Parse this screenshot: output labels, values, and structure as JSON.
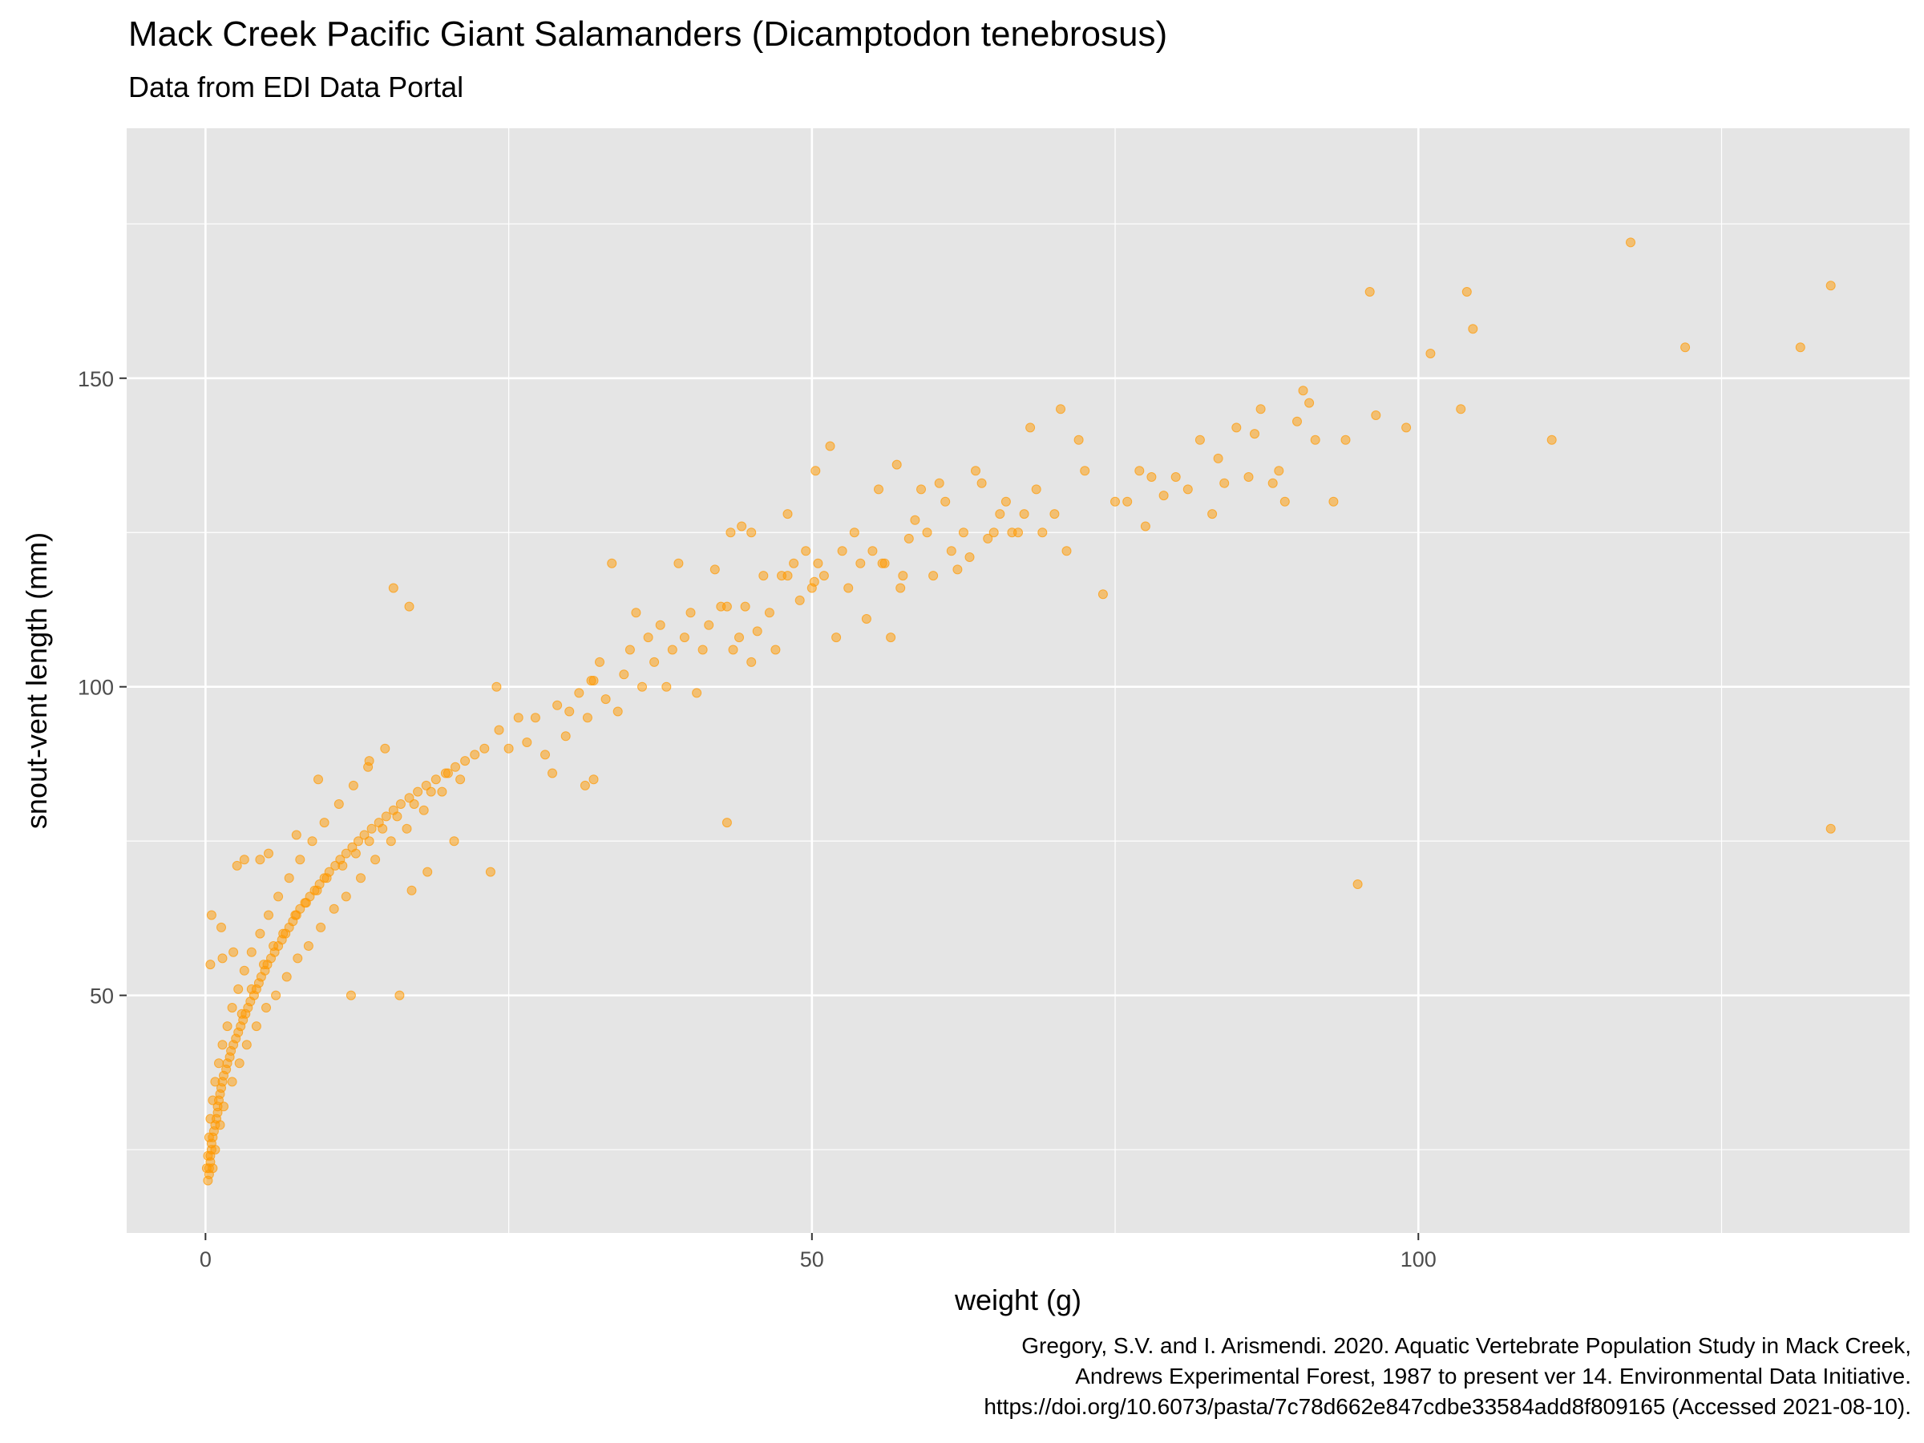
{
  "title": "Mack Creek Pacific Giant Salamanders (Dicamptodon tenebrosus)",
  "subtitle": "Data from EDI Data Portal",
  "caption": [
    "Gregory, S.V. and I. Arismendi. 2020. Aquatic Vertebrate Population Study in Mack Creek,",
    "Andrews Experimental Forest, 1987 to present ver 14. Environmental Data Initiative.",
    "https://doi.org/10.6073/pasta/7c78d662e847cdbe33584add8f809165 (Accessed 2021-08-10)."
  ],
  "colors": {
    "panel": "#e5e5e5",
    "grid": "#ffffff",
    "point": "#ff9900"
  },
  "chart_data": {
    "type": "scatter",
    "title": "Mack Creek Pacific Giant Salamanders (Dicamptodon tenebrosus)",
    "subtitle": "Data from EDI Data Portal",
    "xlabel": "weight (g)",
    "ylabel": "snout-vent length (mm)",
    "xlim": [
      -6.5,
      140.5
    ],
    "ylim": [
      11.5,
      190.5
    ],
    "x_ticks": [
      0,
      50,
      100
    ],
    "x_tick_labels": [
      "0",
      "50",
      "100"
    ],
    "y_ticks": [
      50,
      100,
      150
    ],
    "y_tick_labels": [
      "50",
      "100",
      "150"
    ],
    "grid": true,
    "point_alpha": 0.5,
    "series": [
      {
        "points": [
          [
            0.2,
            20
          ],
          [
            0.3,
            21
          ],
          [
            0.3,
            22
          ],
          [
            0.4,
            23
          ],
          [
            0.4,
            24
          ],
          [
            0.5,
            25
          ],
          [
            0.5,
            26
          ],
          [
            0.6,
            27
          ],
          [
            0.7,
            28
          ],
          [
            0.8,
            29
          ],
          [
            0.9,
            30
          ],
          [
            1.0,
            31
          ],
          [
            1.0,
            32
          ],
          [
            1.1,
            33
          ],
          [
            1.2,
            34
          ],
          [
            1.3,
            35
          ],
          [
            1.4,
            36
          ],
          [
            1.5,
            37
          ],
          [
            1.7,
            38
          ],
          [
            1.8,
            39
          ],
          [
            2.0,
            40
          ],
          [
            2.1,
            41
          ],
          [
            2.3,
            42
          ],
          [
            2.5,
            43
          ],
          [
            2.7,
            44
          ],
          [
            2.9,
            45
          ],
          [
            3.1,
            46
          ],
          [
            3.3,
            47
          ],
          [
            3.5,
            48
          ],
          [
            3.7,
            49
          ],
          [
            4.0,
            50
          ],
          [
            4.2,
            51
          ],
          [
            4.4,
            52
          ],
          [
            4.6,
            53
          ],
          [
            4.9,
            54
          ],
          [
            5.1,
            55
          ],
          [
            5.4,
            56
          ],
          [
            5.7,
            57
          ],
          [
            6.0,
            58
          ],
          [
            6.3,
            59
          ],
          [
            6.6,
            60
          ],
          [
            6.9,
            61
          ],
          [
            7.2,
            62
          ],
          [
            7.5,
            63
          ],
          [
            7.8,
            64
          ],
          [
            8.2,
            65
          ],
          [
            8.6,
            66
          ],
          [
            9.0,
            67
          ],
          [
            9.4,
            68
          ],
          [
            9.8,
            69
          ],
          [
            10.2,
            70
          ],
          [
            10.7,
            71
          ],
          [
            11.1,
            72
          ],
          [
            11.6,
            73
          ],
          [
            12.1,
            74
          ],
          [
            12.6,
            75
          ],
          [
            13.1,
            76
          ],
          [
            13.7,
            77
          ],
          [
            14.3,
            78
          ],
          [
            14.9,
            79
          ],
          [
            15.5,
            80
          ],
          [
            16.1,
            81
          ],
          [
            16.8,
            82
          ],
          [
            17.5,
            83
          ],
          [
            18.2,
            84
          ],
          [
            19.0,
            85
          ],
          [
            19.8,
            86
          ],
          [
            20.6,
            87
          ],
          [
            21.4,
            88
          ],
          [
            22.2,
            89
          ],
          [
            23.0,
            90
          ],
          [
            0.6,
            22
          ],
          [
            0.8,
            25
          ],
          [
            1.2,
            29
          ],
          [
            1.5,
            32
          ],
          [
            2.2,
            36
          ],
          [
            2.8,
            39
          ],
          [
            3.4,
            42
          ],
          [
            4.2,
            45
          ],
          [
            5.0,
            48
          ],
          [
            5.8,
            50
          ],
          [
            6.7,
            53
          ],
          [
            7.6,
            56
          ],
          [
            8.5,
            58
          ],
          [
            9.5,
            61
          ],
          [
            10.6,
            64
          ],
          [
            11.6,
            66
          ],
          [
            12.8,
            69
          ],
          [
            14.0,
            72
          ],
          [
            15.3,
            75
          ],
          [
            16.6,
            77
          ],
          [
            18.0,
            80
          ],
          [
            19.5,
            83
          ],
          [
            21.0,
            85
          ],
          [
            0.1,
            22
          ],
          [
            0.2,
            24
          ],
          [
            0.3,
            27
          ],
          [
            0.4,
            30
          ],
          [
            0.6,
            33
          ],
          [
            0.8,
            36
          ],
          [
            1.1,
            39
          ],
          [
            1.4,
            42
          ],
          [
            1.8,
            45
          ],
          [
            2.2,
            48
          ],
          [
            2.7,
            51
          ],
          [
            3.2,
            54
          ],
          [
            3.8,
            57
          ],
          [
            4.5,
            60
          ],
          [
            5.2,
            63
          ],
          [
            6.0,
            66
          ],
          [
            6.9,
            69
          ],
          [
            7.8,
            72
          ],
          [
            8.8,
            75
          ],
          [
            9.8,
            78
          ],
          [
            11.0,
            81
          ],
          [
            12.2,
            84
          ],
          [
            13.4,
            87
          ],
          [
            14.8,
            90
          ],
          [
            3.0,
            47
          ],
          [
            3.8,
            51
          ],
          [
            4.8,
            55
          ],
          [
            5.6,
            58
          ],
          [
            6.4,
            60
          ],
          [
            7.4,
            63
          ],
          [
            8.3,
            65
          ],
          [
            9.2,
            67
          ],
          [
            10.0,
            69
          ],
          [
            11.3,
            71
          ],
          [
            12.4,
            73
          ],
          [
            13.5,
            75
          ],
          [
            14.6,
            77
          ],
          [
            15.8,
            79
          ],
          [
            17.2,
            81
          ],
          [
            18.6,
            83
          ],
          [
            20.0,
            86
          ],
          [
            0.5,
            63
          ],
          [
            0.4,
            55
          ],
          [
            1.3,
            61
          ],
          [
            1.4,
            56
          ],
          [
            2.3,
            57
          ],
          [
            3.2,
            72
          ],
          [
            2.6,
            71
          ],
          [
            4.5,
            72
          ],
          [
            5.2,
            73
          ],
          [
            7.5,
            76
          ],
          [
            9.3,
            85
          ],
          [
            13.5,
            88
          ],
          [
            16.0,
            50
          ],
          [
            12.0,
            50
          ],
          [
            15.5,
            116
          ],
          [
            16.8,
            113
          ],
          [
            17.0,
            67
          ],
          [
            18.3,
            70
          ],
          [
            20.5,
            75
          ],
          [
            23.5,
            70
          ],
          [
            24.0,
            100
          ],
          [
            24.2,
            93
          ],
          [
            25.0,
            90
          ],
          [
            25.8,
            95
          ],
          [
            26.5,
            91
          ],
          [
            27.2,
            95
          ],
          [
            28.0,
            89
          ],
          [
            28.6,
            86
          ],
          [
            29.0,
            97
          ],
          [
            29.7,
            92
          ],
          [
            30.0,
            96
          ],
          [
            30.8,
            99
          ],
          [
            31.3,
            84
          ],
          [
            31.5,
            95
          ],
          [
            32.0,
            101
          ],
          [
            32.5,
            104
          ],
          [
            32.0,
            85
          ],
          [
            33.0,
            98
          ],
          [
            33.5,
            120
          ],
          [
            34.0,
            96
          ],
          [
            34.5,
            102
          ],
          [
            35.0,
            106
          ],
          [
            35.5,
            112
          ],
          [
            36.0,
            100
          ],
          [
            36.5,
            108
          ],
          [
            37.0,
            104
          ],
          [
            37.5,
            110
          ],
          [
            38.0,
            100
          ],
          [
            38.5,
            106
          ],
          [
            39.0,
            120
          ],
          [
            39.5,
            108
          ],
          [
            40.0,
            112
          ],
          [
            40.5,
            99
          ],
          [
            41.0,
            106
          ],
          [
            41.5,
            110
          ],
          [
            42.0,
            119
          ],
          [
            42.5,
            113
          ],
          [
            43.0,
            113
          ],
          [
            43.5,
            106
          ],
          [
            44.0,
            108
          ],
          [
            44.5,
            113
          ],
          [
            45.0,
            104
          ],
          [
            45.5,
            109
          ],
          [
            46.0,
            118
          ],
          [
            46.5,
            112
          ],
          [
            47.0,
            106
          ],
          [
            47.5,
            118
          ],
          [
            48.0,
            118
          ],
          [
            48.5,
            120
          ],
          [
            49.0,
            114
          ],
          [
            49.5,
            122
          ],
          [
            50.0,
            116
          ],
          [
            50.3,
            135
          ],
          [
            50.5,
            120
          ],
          [
            51.0,
            118
          ],
          [
            51.5,
            139
          ],
          [
            52.0,
            108
          ],
          [
            52.5,
            122
          ],
          [
            53.0,
            116
          ],
          [
            53.5,
            125
          ],
          [
            54.0,
            120
          ],
          [
            54.5,
            111
          ],
          [
            55.0,
            122
          ],
          [
            55.5,
            132
          ],
          [
            56.0,
            120
          ],
          [
            56.5,
            108
          ],
          [
            57.0,
            136
          ],
          [
            57.5,
            118
          ],
          [
            58.0,
            124
          ],
          [
            58.5,
            127
          ],
          [
            59.0,
            132
          ],
          [
            59.5,
            125
          ],
          [
            60.0,
            118
          ],
          [
            60.5,
            133
          ],
          [
            61.0,
            130
          ],
          [
            61.5,
            122
          ],
          [
            62.0,
            119
          ],
          [
            62.5,
            125
          ],
          [
            63.0,
            121
          ],
          [
            63.5,
            135
          ],
          [
            64.0,
            133
          ],
          [
            64.5,
            124
          ],
          [
            65.0,
            125
          ],
          [
            65.5,
            128
          ],
          [
            66.0,
            130
          ],
          [
            66.5,
            125
          ],
          [
            67.0,
            125
          ],
          [
            67.5,
            128
          ],
          [
            68.0,
            142
          ],
          [
            68.5,
            132
          ],
          [
            69.0,
            125
          ],
          [
            70.0,
            128
          ],
          [
            70.5,
            145
          ],
          [
            71.0,
            122
          ],
          [
            72.0,
            140
          ],
          [
            72.5,
            135
          ],
          [
            74.0,
            115
          ],
          [
            75.0,
            130
          ],
          [
            76.0,
            130
          ],
          [
            77.0,
            135
          ],
          [
            77.5,
            126
          ],
          [
            78.0,
            134
          ],
          [
            79.0,
            131
          ],
          [
            80.0,
            134
          ],
          [
            81.0,
            132
          ],
          [
            82.0,
            140
          ],
          [
            83.0,
            128
          ],
          [
            83.5,
            137
          ],
          [
            84.0,
            133
          ],
          [
            85.0,
            142
          ],
          [
            86.0,
            134
          ],
          [
            86.5,
            141
          ],
          [
            87.0,
            145
          ],
          [
            88.0,
            133
          ],
          [
            88.5,
            135
          ],
          [
            89.0,
            130
          ],
          [
            90.0,
            143
          ],
          [
            90.5,
            148
          ],
          [
            91.0,
            146
          ],
          [
            91.5,
            140
          ],
          [
            93.0,
            130
          ],
          [
            94.0,
            140
          ],
          [
            96.0,
            164
          ],
          [
            96.5,
            144
          ],
          [
            95.0,
            68
          ],
          [
            99.0,
            142
          ],
          [
            101.0,
            154
          ],
          [
            103.5,
            145
          ],
          [
            104.0,
            164
          ],
          [
            104.5,
            158
          ],
          [
            111.0,
            140
          ],
          [
            117.5,
            172
          ],
          [
            122.0,
            155
          ],
          [
            131.5,
            155
          ],
          [
            134.0,
            165
          ],
          [
            134.0,
            77
          ],
          [
            43.0,
            78
          ],
          [
            45.0,
            125
          ],
          [
            50.2,
            117
          ],
          [
            31.8,
            101
          ],
          [
            48.0,
            128
          ],
          [
            43.3,
            125
          ],
          [
            44.2,
            126
          ],
          [
            55.8,
            120
          ],
          [
            57.3,
            116
          ]
        ]
      }
    ]
  }
}
